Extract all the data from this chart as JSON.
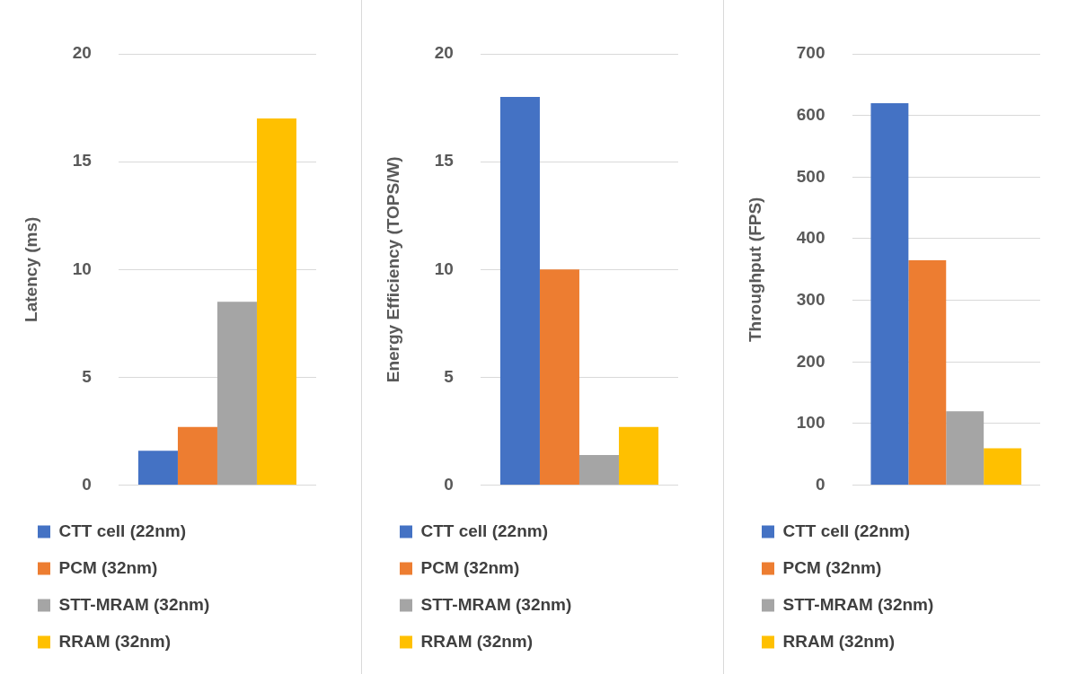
{
  "chart_data": [
    {
      "type": "bar",
      "ylabel": "Latency (ms)",
      "categories": [
        null
      ],
      "ylim": [
        0,
        20
      ],
      "yticks": [
        0,
        5,
        10,
        15,
        20
      ],
      "grid": "y",
      "legend": "bottom",
      "series": [
        {
          "name": "CTT cell (22nm)",
          "color": "#4472c4",
          "values": [
            1.6
          ]
        },
        {
          "name": "PCM (32nm)",
          "color": "#ed7d31",
          "values": [
            2.7
          ]
        },
        {
          "name": "STT-MRAM (32nm)",
          "color": "#a5a5a5",
          "values": [
            8.5
          ]
        },
        {
          "name": "RRAM (32nm)",
          "color": "#ffc000",
          "values": [
            17
          ]
        }
      ]
    },
    {
      "type": "bar",
      "ylabel": "Energy Efficiency (TOPS/W)",
      "categories": [
        null
      ],
      "ylim": [
        0,
        20
      ],
      "yticks": [
        0,
        5,
        10,
        15,
        20
      ],
      "grid": "y",
      "legend": "bottom",
      "series": [
        {
          "name": "CTT cell (22nm)",
          "color": "#4472c4",
          "values": [
            18
          ]
        },
        {
          "name": "PCM (32nm)",
          "color": "#ed7d31",
          "values": [
            10
          ]
        },
        {
          "name": "STT-MRAM (32nm)",
          "color": "#a5a5a5",
          "values": [
            1.4
          ]
        },
        {
          "name": "RRAM (32nm)",
          "color": "#ffc000",
          "values": [
            2.7
          ]
        }
      ]
    },
    {
      "type": "bar",
      "ylabel": "Throughput (FPS)",
      "categories": [
        null
      ],
      "ylim": [
        0,
        700
      ],
      "yticks": [
        0,
        100,
        200,
        300,
        400,
        500,
        600,
        700
      ],
      "grid": "y",
      "legend": "bottom",
      "series": [
        {
          "name": "CTT cell (22nm)",
          "color": "#4472c4",
          "values": [
            620
          ]
        },
        {
          "name": "PCM (32nm)",
          "color": "#ed7d31",
          "values": [
            365
          ]
        },
        {
          "name": "STT-MRAM (32nm)",
          "color": "#a5a5a5",
          "values": [
            120
          ]
        },
        {
          "name": "RRAM (32nm)",
          "color": "#ffc000",
          "values": [
            60
          ]
        }
      ]
    }
  ]
}
